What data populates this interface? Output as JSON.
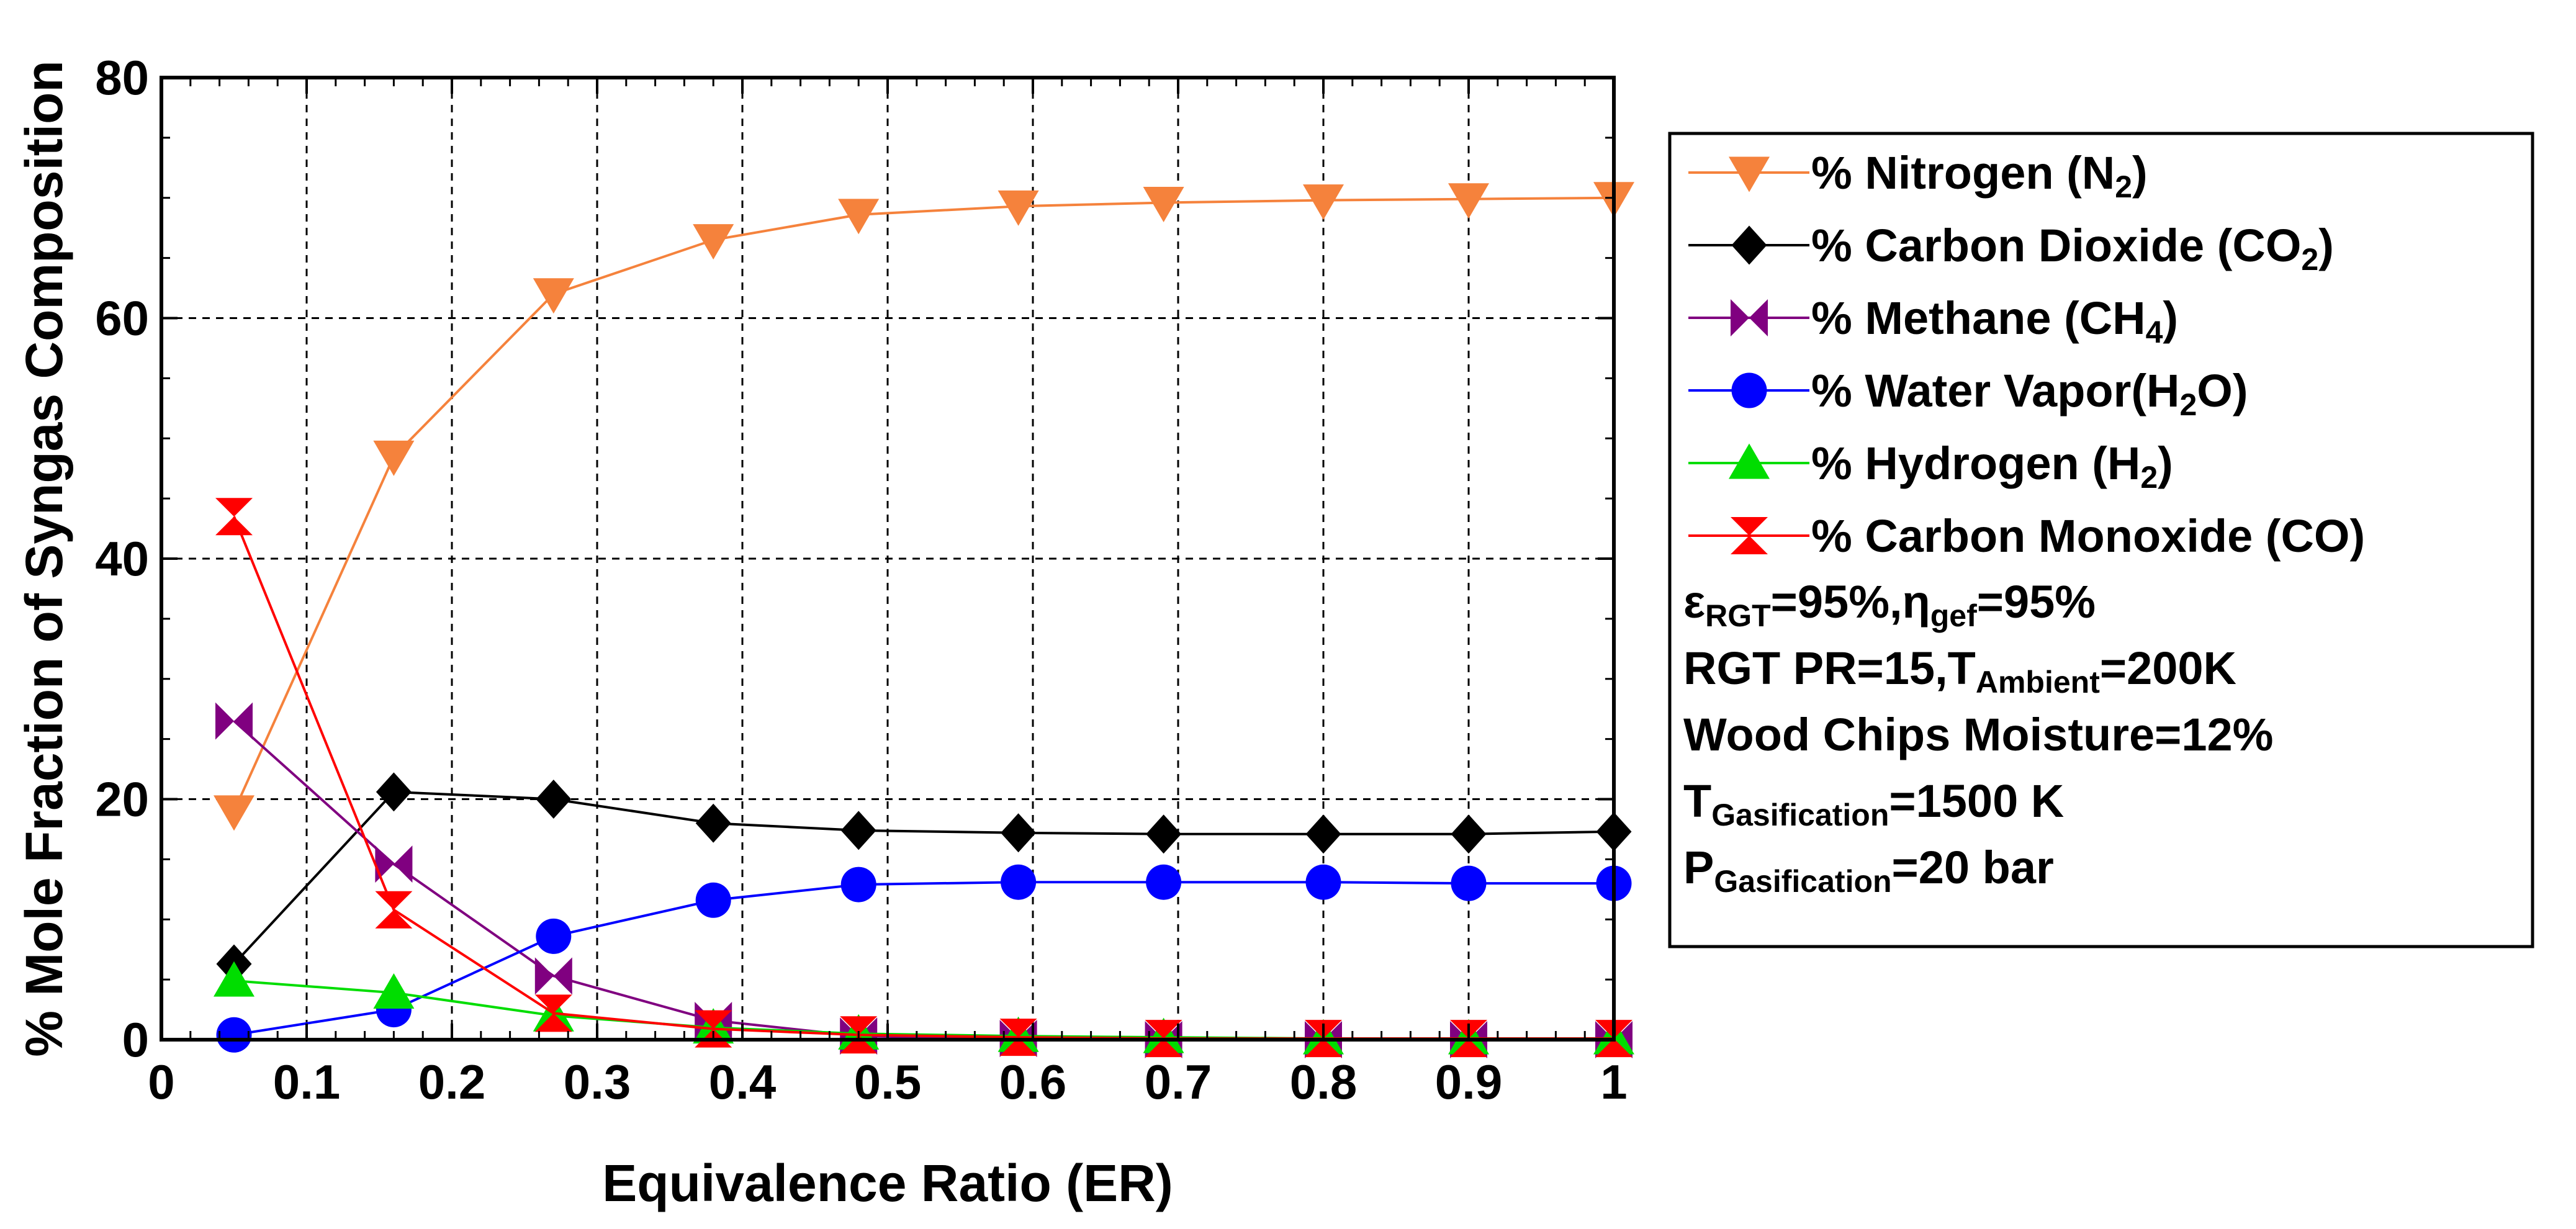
{
  "chart_data": {
    "type": "line",
    "xlabel": "Equivalence Ratio (ER)",
    "ylabel": "% Mole Fraction of Syngas Composition",
    "xlim": [
      0,
      1
    ],
    "ylim": [
      0,
      80
    ],
    "xticks": [
      "0",
      "0.1",
      "0.2",
      "0.3",
      "0.4",
      "0.5",
      "0.6",
      "0.7",
      "0.8",
      "0.9",
      "1"
    ],
    "yticks": [
      "0",
      "20",
      "40",
      "60",
      "80"
    ],
    "grid": true,
    "legend_position": "right",
    "x": [
      0.05,
      0.16,
      0.27,
      0.38,
      0.48,
      0.59,
      0.69,
      0.8,
      0.9,
      1.0
    ],
    "series": [
      {
        "name": "% Nitrogen (N2)",
        "label_main": "% Nitrogen (N",
        "label_sub": "2",
        "label_end": ")",
        "color": "#f5823c",
        "marker": "triangle-down",
        "values": [
          19,
          48.5,
          62,
          66.5,
          68.6,
          69.3,
          69.6,
          69.8,
          69.9,
          70
        ]
      },
      {
        "name": "% Carbon Dioxide (CO2)",
        "label_main": "% Carbon Dioxide (CO",
        "label_sub": "2",
        "label_end": ")",
        "color": "#000000",
        "marker": "diamond",
        "values": [
          6.3,
          20.6,
          20,
          18,
          17.4,
          17.2,
          17.1,
          17.1,
          17.1,
          17.3
        ]
      },
      {
        "name": "% Methane (CH4)",
        "label_main": "% Methane (CH",
        "label_sub": "4",
        "label_end": ")",
        "color": "#800080",
        "marker": "bowtie",
        "values": [
          26.5,
          14.6,
          5.3,
          1.6,
          0.3,
          0.1,
          0,
          0,
          0,
          0
        ]
      },
      {
        "name": "% Water Vapor(H2O)",
        "label_main": "% Water Vapor(H",
        "label_sub": "2",
        "label_end": "O)",
        "color": "#0000ff",
        "marker": "circle",
        "values": [
          0.4,
          2.5,
          8.6,
          11.6,
          12.9,
          13.1,
          13.1,
          13.1,
          13,
          13
        ]
      },
      {
        "name": "% Hydrogen (H2)",
        "label_main": "% Hydrogen (H",
        "label_sub": "2",
        "label_end": ")",
        "color": "#00dd00",
        "marker": "triangle-up",
        "values": [
          4.9,
          3.9,
          2,
          1,
          0.5,
          0.3,
          0.2,
          0.1,
          0.1,
          0.1
        ]
      },
      {
        "name": "% Carbon Monoxide (CO)",
        "label_main": "% Carbon Monoxide (CO)",
        "label_sub": "",
        "label_end": "",
        "color": "#ff0000",
        "marker": "hourglass",
        "values": [
          43.5,
          10.8,
          2.2,
          0.9,
          0.4,
          0.2,
          0.1,
          0.1,
          0.1,
          0.1
        ]
      }
    ],
    "annotations": [
      {
        "parts": [
          {
            "t": "ε"
          },
          {
            "t": "RGT",
            "sub": true
          },
          {
            "t": "=95%,η"
          },
          {
            "t": "gef",
            "sub": true
          },
          {
            "t": "=95%"
          }
        ]
      },
      {
        "parts": [
          {
            "t": "RGT PR=15,T"
          },
          {
            "t": "Ambient",
            "sub": true
          },
          {
            "t": "=200K"
          }
        ]
      },
      {
        "parts": [
          {
            "t": "Wood Chips Moisture=12%"
          }
        ]
      },
      {
        "parts": [
          {
            "t": "T"
          },
          {
            "t": "Gasification",
            "sub": true
          },
          {
            "t": "=1500 K"
          }
        ]
      },
      {
        "parts": [
          {
            "t": "P"
          },
          {
            "t": "Gasification",
            "sub": true
          },
          {
            "t": "=20 bar"
          }
        ]
      }
    ]
  }
}
